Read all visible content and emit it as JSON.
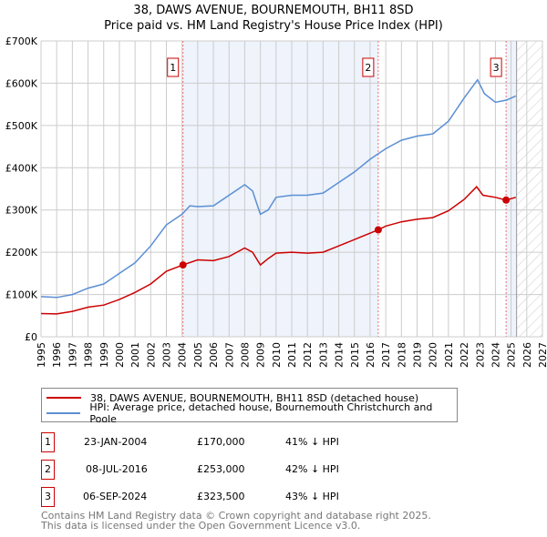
{
  "title": "38, DAWS AVENUE, BOURNEMOUTH, BH11 8SD",
  "subtitle": "Price paid vs. HM Land Registry's House Price Index (HPI)",
  "chart_data": {
    "type": "line",
    "title": "38, DAWS AVENUE, BOURNEMOUTH, BH11 8SD — Price paid vs. HM Land Registry's House Price Index (HPI)",
    "xlim": [
      1995,
      2027
    ],
    "ylim": [
      0,
      700000
    ],
    "x_ticks": [
      "1995",
      "1996",
      "1997",
      "1998",
      "1999",
      "2000",
      "2001",
      "2002",
      "2003",
      "2004",
      "2005",
      "2006",
      "2007",
      "2008",
      "2009",
      "2010",
      "2011",
      "2012",
      "2013",
      "2014",
      "2015",
      "2016",
      "2017",
      "2018",
      "2019",
      "2020",
      "2021",
      "2022",
      "2023",
      "2024",
      "2025",
      "2026",
      "2027"
    ],
    "y_ticks": [
      {
        "v": 0,
        "label": "£0"
      },
      {
        "v": 100000,
        "label": "£100K"
      },
      {
        "v": 200000,
        "label": "£200K"
      },
      {
        "v": 300000,
        "label": "£300K"
      },
      {
        "v": 400000,
        "label": "£400K"
      },
      {
        "v": 500000,
        "label": "£500K"
      },
      {
        "v": 600000,
        "label": "£600K"
      },
      {
        "v": 700000,
        "label": "£700K"
      }
    ],
    "grid": true,
    "series": [
      {
        "name": "38, DAWS AVENUE, BOURNEMOUTH, BH11 8SD (detached house)",
        "color": "#cc0000",
        "x": [
          1995,
          1996,
          1997,
          1998,
          1999,
          2000,
          2001,
          2002,
          2003,
          2004.06,
          2005,
          2006,
          2007,
          2008,
          2008.5,
          2009,
          2009.5,
          2010,
          2011,
          2012,
          2013,
          2014,
          2015,
          2016.52,
          2017,
          2018,
          2019,
          2020,
          2021,
          2022,
          2022.8,
          2023.2,
          2024,
          2024.68,
          2025.3
        ],
        "y": [
          55000,
          54000,
          60000,
          70000,
          75000,
          88000,
          105000,
          125000,
          155000,
          170000,
          182000,
          180000,
          190000,
          210000,
          200000,
          170000,
          185000,
          198000,
          200000,
          198000,
          200000,
          215000,
          230000,
          253000,
          262000,
          272000,
          278000,
          282000,
          298000,
          325000,
          355000,
          335000,
          330000,
          323500,
          330000
        ]
      },
      {
        "name": "HPI: Average price, detached house, Bournemouth Christchurch and Poole",
        "color": "#5b8fd4",
        "x": [
          1995,
          1996,
          1997,
          1998,
          1999,
          2000,
          2001,
          2002,
          2003,
          2004,
          2004.5,
          2005,
          2006,
          2007,
          2008,
          2008.5,
          2009,
          2009.5,
          2010,
          2011,
          2012,
          2013,
          2014,
          2015,
          2016,
          2017,
          2018,
          2019,
          2020,
          2021,
          2022,
          2022.86,
          2023.3,
          2024,
          2024.7,
          2025.3
        ],
        "y": [
          95000,
          93000,
          100000,
          115000,
          125000,
          150000,
          175000,
          215000,
          265000,
          290000,
          310000,
          308000,
          310000,
          335000,
          360000,
          345000,
          290000,
          300000,
          330000,
          335000,
          335000,
          340000,
          365000,
          390000,
          420000,
          445000,
          465000,
          475000,
          480000,
          510000,
          565000,
          608000,
          575000,
          555000,
          560000,
          570000
        ]
      }
    ],
    "sales": [
      {
        "n": "1",
        "x": 2004.06,
        "y": 170000
      },
      {
        "n": "2",
        "x": 2016.52,
        "y": 253000
      },
      {
        "n": "3",
        "x": 2024.68,
        "y": 323500
      }
    ],
    "data_end": 2025.35
  },
  "legend": [
    "38, DAWS AVENUE, BOURNEMOUTH, BH11 8SD (detached house)",
    "HPI: Average price, detached house, Bournemouth Christchurch and Poole"
  ],
  "transactions": [
    {
      "n": "1",
      "date": "23-JAN-2004",
      "price": "£170,000",
      "hpi": "41% ↓ HPI"
    },
    {
      "n": "2",
      "date": "08-JUL-2016",
      "price": "£253,000",
      "hpi": "42% ↓ HPI"
    },
    {
      "n": "3",
      "date": "06-SEP-2024",
      "price": "£323,500",
      "hpi": "43% ↓ HPI"
    }
  ],
  "footer": [
    "Contains HM Land Registry data © Crown copyright and database right 2025.",
    "This data is licensed under the Open Government Licence v3.0."
  ]
}
